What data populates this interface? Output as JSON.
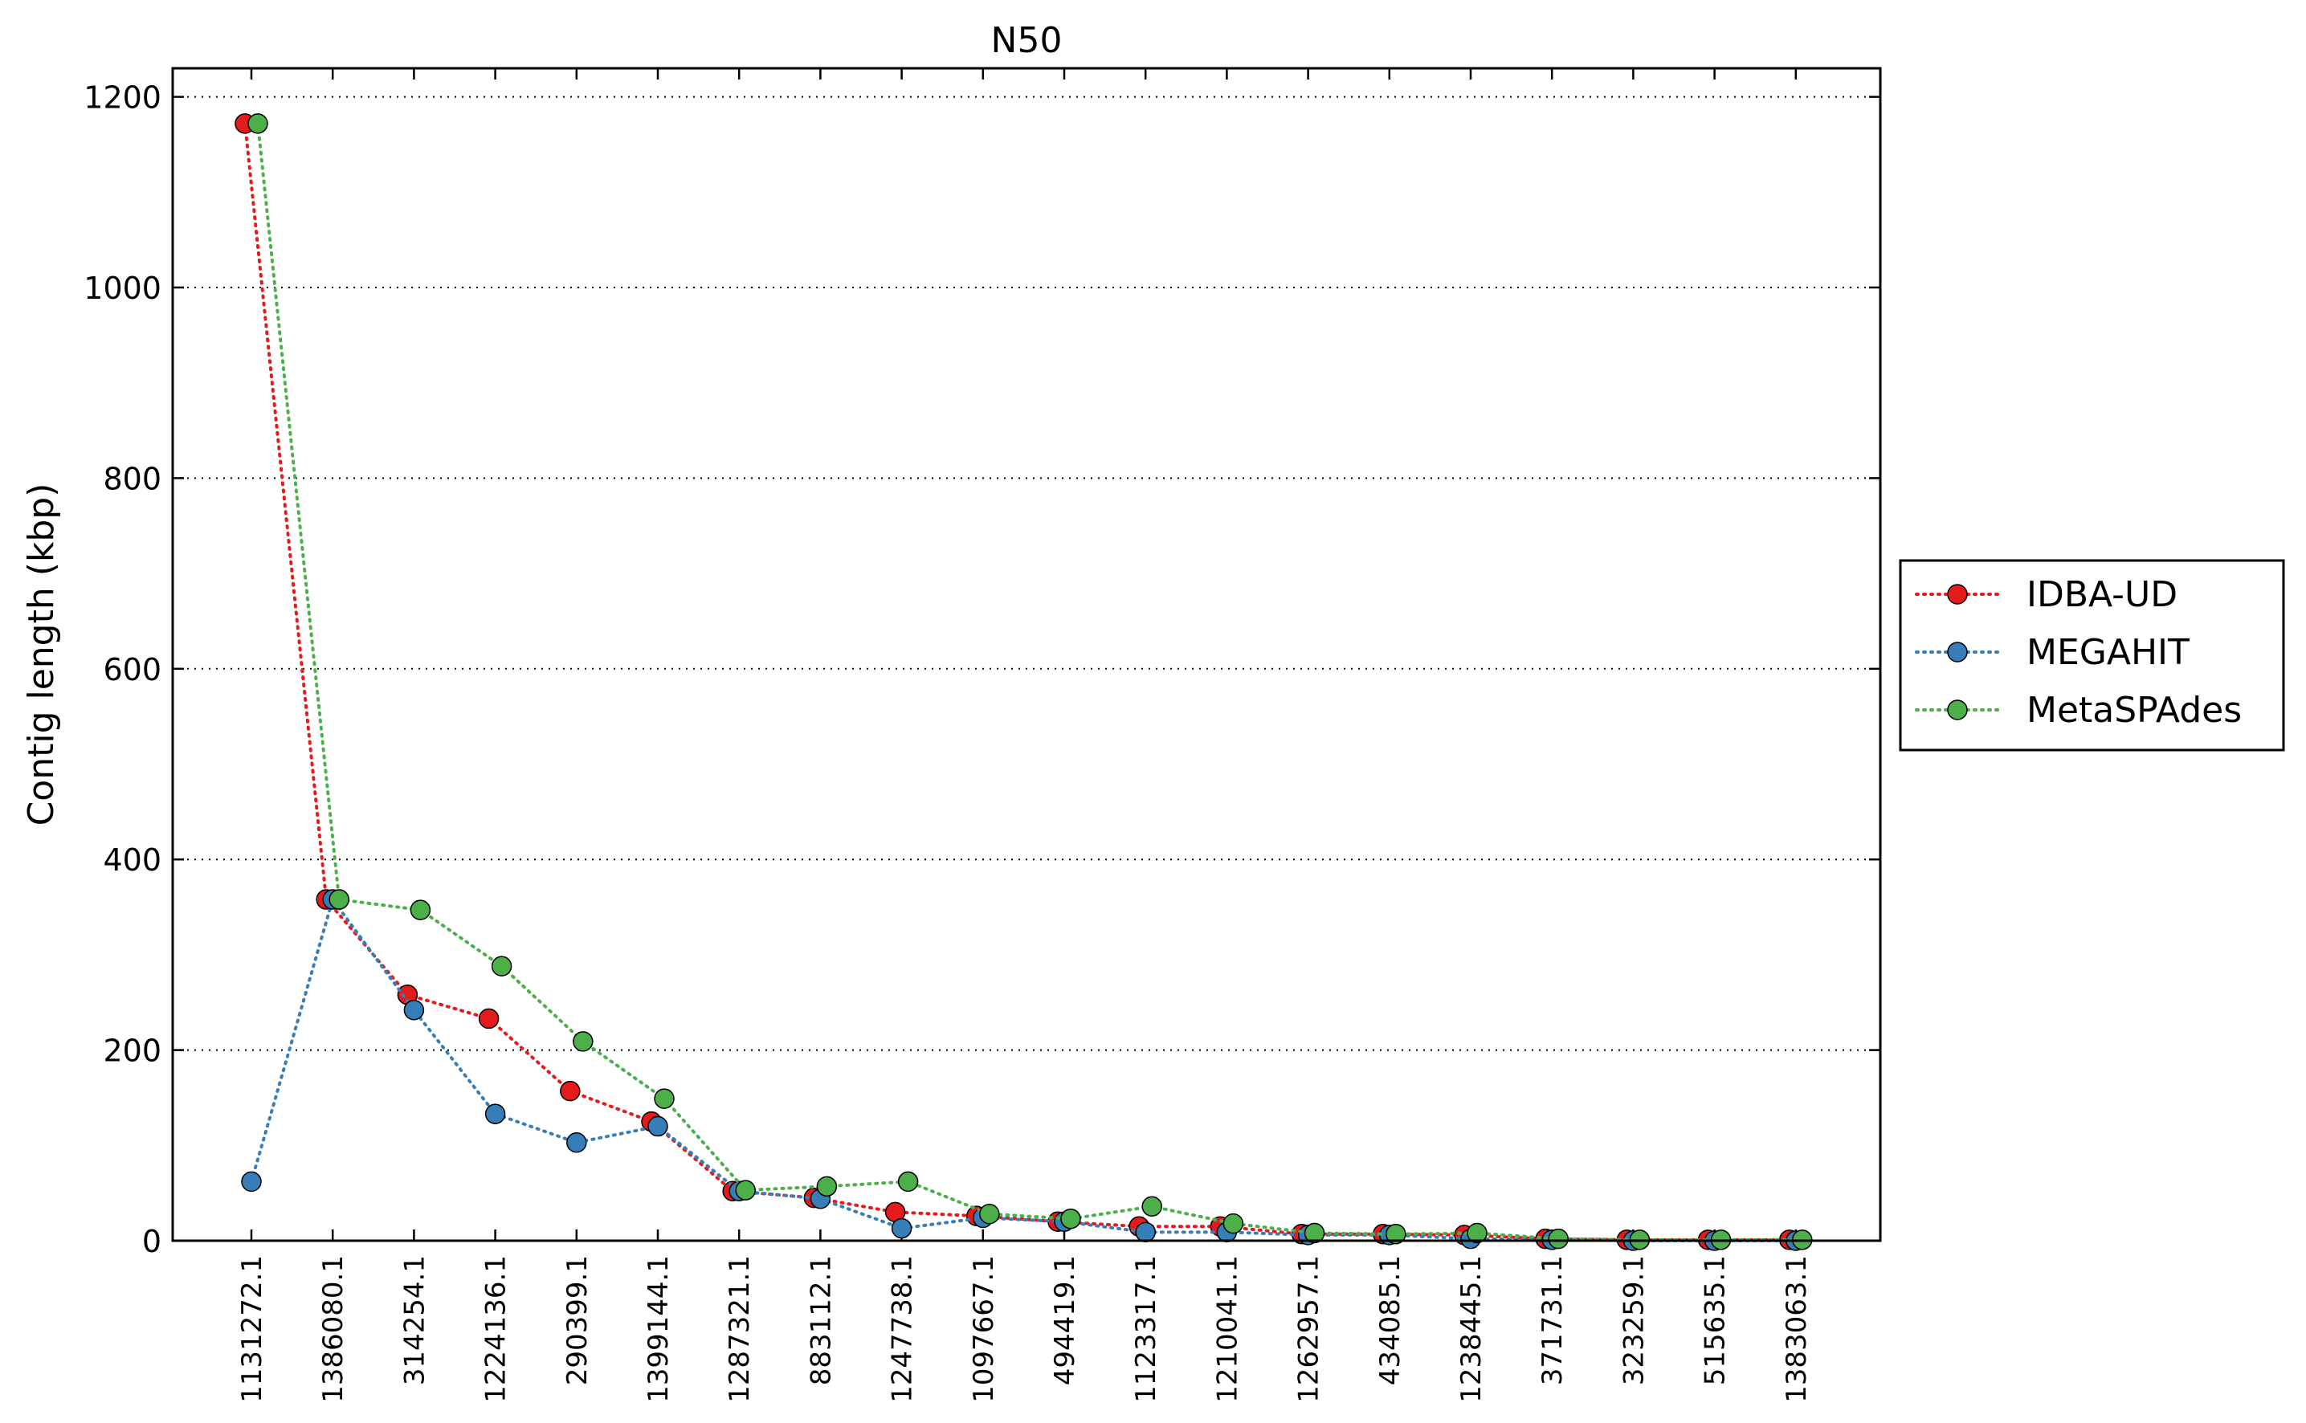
{
  "chart_data": {
    "type": "line",
    "title": "N50",
    "xlabel": "",
    "ylabel": "Contig length (kbp)",
    "ylim": [
      0,
      1230
    ],
    "yticks": [
      0,
      200,
      400,
      600,
      800,
      1000,
      1200
    ],
    "grid": "y-dotted",
    "legend_position": "right",
    "categories": [
      "1131272.1",
      "1386080.1",
      "314254.1",
      "1224136.1",
      "290399.1",
      "1399144.1",
      "1287321.1",
      "883112.1",
      "1247738.1",
      "1097667.1",
      "494419.1",
      "1123317.1",
      "1210041.1",
      "1262957.1",
      "434085.1",
      "1238445.1",
      "371731.1",
      "323259.1",
      "515635.1",
      "1383063.1"
    ],
    "series": [
      {
        "name": "IDBA-UD",
        "color": "#e41a1c",
        "marker": "circle",
        "linestyle": "dotted",
        "offset": -1,
        "values": [
          1172,
          358,
          258,
          233,
          157,
          125,
          52,
          45,
          30,
          26,
          20,
          15,
          15,
          7,
          7,
          6,
          2,
          1,
          1,
          1
        ]
      },
      {
        "name": "MEGAHIT",
        "color": "#377eb8",
        "marker": "circle",
        "linestyle": "dotted",
        "offset": 0,
        "values": [
          62,
          358,
          242,
          133,
          103,
          120,
          52,
          44,
          13,
          24,
          20,
          9,
          9,
          6,
          6,
          2,
          1,
          0,
          0,
          0
        ]
      },
      {
        "name": "MetaSPAdes",
        "color": "#4daf4a",
        "marker": "circle",
        "linestyle": "dotted",
        "offset": 1,
        "values": [
          1172,
          358,
          347,
          288,
          209,
          149,
          53,
          57,
          62,
          28,
          23,
          36,
          18,
          8,
          7,
          8,
          2,
          1,
          1,
          1
        ]
      }
    ]
  }
}
